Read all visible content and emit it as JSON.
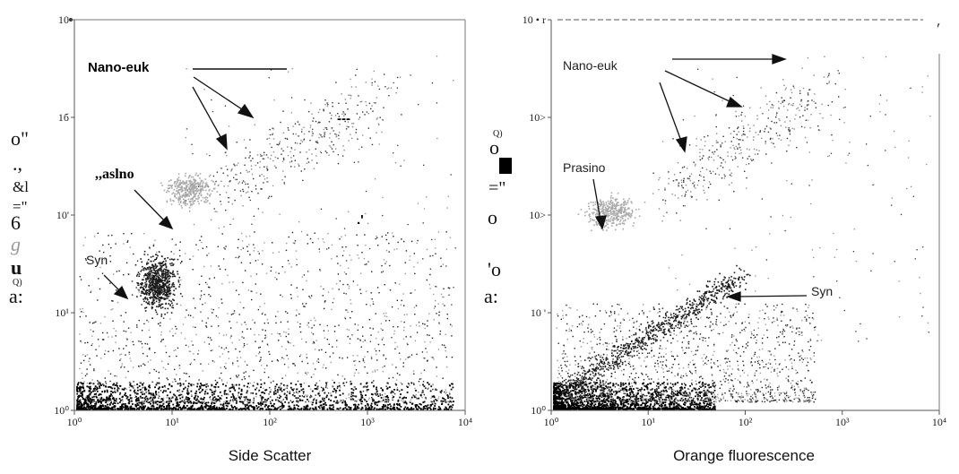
{
  "chart_data": [
    {
      "type": "scatter",
      "xlabel": "Side Scatter",
      "ylabel": "",
      "xscale": "log",
      "yscale": "log",
      "xlim": [
        1,
        10000
      ],
      "ylim": [
        1,
        10000
      ],
      "x_ticks": [
        "10⁰",
        "10¹",
        "10²",
        "10³",
        "10⁴"
      ],
      "y_ticks": [
        "10⁰",
        "10¹",
        "10'",
        "1б",
        "10"
      ],
      "grid": false,
      "legend": "none",
      "populations": [
        {
          "name": "Nano-euk",
          "color": "#8a8a8a",
          "x_center": 120,
          "y_center": 700
        },
        {
          "name": ",,aslno",
          "color": "#aaaaaa",
          "x_center": 15,
          "y_center": 180
        },
        {
          "name": "Syn",
          "color": "#222222",
          "x_center": 7,
          "y_center": 20
        }
      ],
      "labels": [
        "Nano-euk",
        ",,aslno",
        "Syn"
      ],
      "ylabel_fragments": [
        "o\"",
        ".,",
        "&l",
        "=\"",
        "6",
        "g",
        "u",
        "Q)",
        "a:"
      ],
      "artifacts": [
        "---",
        ".'"
      ]
    },
    {
      "type": "scatter",
      "xlabel": "Orange fluorescence",
      "ylabel": "",
      "xscale": "log",
      "yscale": "log",
      "xlim": [
        1,
        10000
      ],
      "ylim": [
        1,
        10000
      ],
      "x_ticks": [
        "10⁰",
        "10¹",
        "10²",
        "10³",
        "10⁴"
      ],
      "y_ticks": [
        "10⁰",
        "10 '",
        "10>",
        "10>",
        "10 • r"
      ],
      "grid": false,
      "legend": "none",
      "populations": [
        {
          "name": "Nano-euk",
          "color": "#8a8a8a",
          "x_center": 60,
          "y_center": 800
        },
        {
          "name": "Prasino",
          "color": "#aaaaaa",
          "x_center": 4,
          "y_center": 110
        },
        {
          "name": "Syn",
          "color": "#222222",
          "x_center": 25,
          "y_center": 18
        }
      ],
      "labels": [
        "Nano-euk",
        "Prasino",
        "Syn"
      ],
      "ylabel_fragments": [
        "Q)",
        "o",
        "=\"",
        "o",
        "'o",
        "a:"
      ],
      "artifacts": [
        ","
      ]
    }
  ]
}
